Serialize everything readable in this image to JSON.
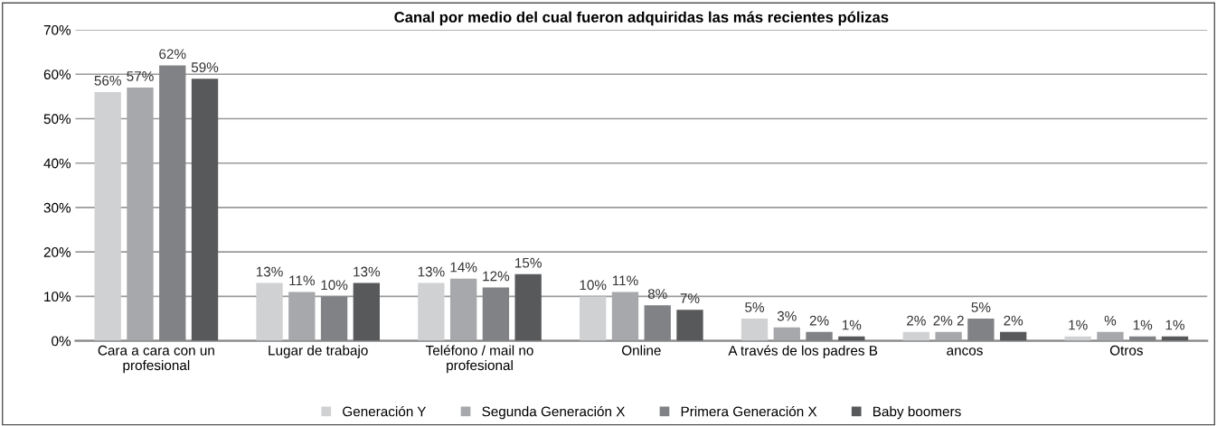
{
  "chart_data": {
    "type": "bar",
    "title": "Canal por medio del cual fueron adquiridas las más recientes pólizas",
    "categories": [
      "Cara a cara con un\nprofesional",
      "Lugar de trabajo",
      "Teléfono / mail no\nprofesional",
      "Online",
      "A través de los padres B",
      "ancos",
      "Otros"
    ],
    "series": [
      {
        "name": "Generación Y",
        "color": "#d0d1d3",
        "values": [
          56,
          13,
          13,
          10,
          5,
          2,
          1
        ],
        "value_labels": [
          "56%",
          "13%",
          "13%",
          "10%",
          "5%",
          "2%",
          "1%"
        ]
      },
      {
        "name": "Segunda Generación X",
        "color": "#a7a8ab",
        "values": [
          57,
          11,
          14,
          11,
          3,
          2,
          2
        ],
        "value_labels": [
          "57%",
          "11%",
          "14%",
          "11%",
          "3%",
          "2% 2",
          "%"
        ]
      },
      {
        "name": "Primera Generación X",
        "color": "#808285",
        "values": [
          62,
          10,
          12,
          8,
          2,
          5,
          1
        ],
        "value_labels": [
          "62%",
          "10%",
          "12%",
          "8%",
          "2%",
          "5%",
          "1%"
        ]
      },
      {
        "name": "Baby boomers",
        "color": "#58595b",
        "values": [
          59,
          13,
          15,
          7,
          1,
          2,
          1
        ],
        "value_labels": [
          "59%",
          "13%",
          "15%",
          "7%",
          "1%",
          "2%",
          "1%"
        ]
      }
    ],
    "ylim": [
      0,
      70
    ],
    "yticks": [
      {
        "value": 0,
        "label": "0%"
      },
      {
        "value": 10,
        "label": "10%"
      },
      {
        "value": 20,
        "label": "20%"
      },
      {
        "value": 30,
        "label": "30%"
      },
      {
        "value": 40,
        "label": "40%"
      },
      {
        "value": 50,
        "label": "50%"
      },
      {
        "value": 60,
        "label": "60%"
      },
      {
        "value": 70,
        "label": "70%"
      }
    ],
    "grid": "y",
    "legend": "bottom"
  }
}
